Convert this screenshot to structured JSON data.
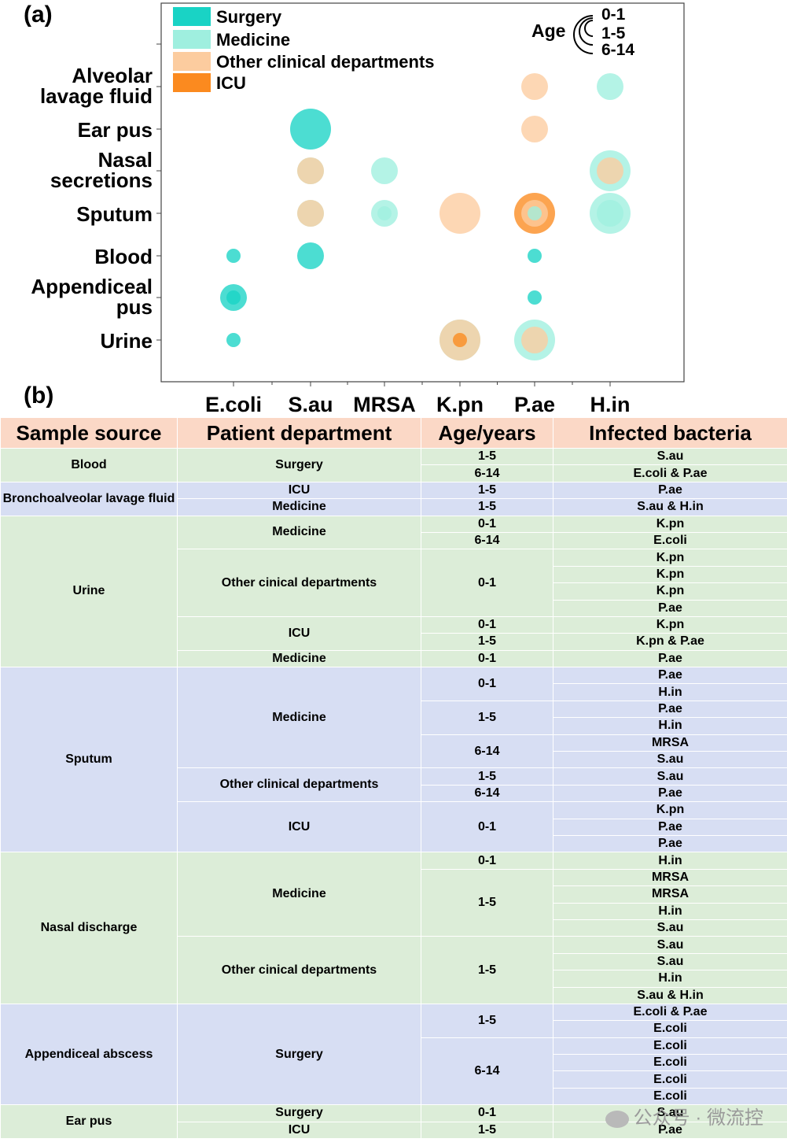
{
  "panel_a_label": "(a)",
  "panel_b_label": "(b)",
  "chart_data": {
    "type": "scatter",
    "categories": [
      "E.coli",
      "S.au",
      "MRSA",
      "K.pn",
      "P.ae",
      "H.in"
    ],
    "rows": [
      "Urine",
      "Appendiceal pus",
      "Blood",
      "Sputum",
      "Nasal secretions",
      "Ear pus",
      "Alveolar lavage fluid"
    ],
    "legend": {
      "departments": [
        {
          "name": "Surgery",
          "color": "#19d3c5"
        },
        {
          "name": "Medicine",
          "color": "#9fefdf"
        },
        {
          "name": "Other clinical departments",
          "color": "#fccc9f"
        },
        {
          "name": "ICU",
          "color": "#fb8a1f"
        }
      ],
      "age_title": "Age",
      "age_groups": [
        "0-1",
        "1-5",
        "6-14"
      ],
      "placement": "top"
    },
    "points": [
      {
        "x": "E.coli",
        "y": "Urine",
        "dept": "Surgery",
        "size": 1
      },
      {
        "x": "E.coli",
        "y": "Appendiceal pus",
        "dept": "Surgery",
        "size": 2
      },
      {
        "x": "E.coli",
        "y": "Appendiceal pus",
        "dept": "Surgery",
        "size": 1
      },
      {
        "x": "E.coli",
        "y": "Blood",
        "dept": "Surgery",
        "size": 1
      },
      {
        "x": "S.au",
        "y": "Blood",
        "dept": "Surgery",
        "size": 2
      },
      {
        "x": "S.au",
        "y": "Sputum",
        "dept": "Medicine",
        "size": 2
      },
      {
        "x": "S.au",
        "y": "Sputum",
        "dept": "Other clinical departments",
        "size": 2
      },
      {
        "x": "S.au",
        "y": "Nasal secretions",
        "dept": "Medicine",
        "size": 2
      },
      {
        "x": "S.au",
        "y": "Nasal secretions",
        "dept": "Other clinical departments",
        "size": 2
      },
      {
        "x": "S.au",
        "y": "Ear pus",
        "dept": "Surgery",
        "size": 3
      },
      {
        "x": "MRSA",
        "y": "Sputum",
        "dept": "Medicine",
        "size": 2
      },
      {
        "x": "MRSA",
        "y": "Sputum",
        "dept": "Medicine",
        "size": 1
      },
      {
        "x": "MRSA",
        "y": "Nasal secretions",
        "dept": "Medicine",
        "size": 2
      },
      {
        "x": "K.pn",
        "y": "Urine",
        "dept": "Medicine",
        "size": 3
      },
      {
        "x": "K.pn",
        "y": "Urine",
        "dept": "Other clinical departments",
        "size": 3
      },
      {
        "x": "K.pn",
        "y": "Urine",
        "dept": "ICU",
        "size": 1
      },
      {
        "x": "K.pn",
        "y": "Sputum",
        "dept": "Other clinical departments",
        "size": 3
      },
      {
        "x": "P.ae",
        "y": "Urine",
        "dept": "Medicine",
        "size": 3
      },
      {
        "x": "P.ae",
        "y": "Urine",
        "dept": "Other clinical departments",
        "size": 2
      },
      {
        "x": "P.ae",
        "y": "Appendiceal pus",
        "dept": "Surgery",
        "size": 1
      },
      {
        "x": "P.ae",
        "y": "Blood",
        "dept": "Surgery",
        "size": 1
      },
      {
        "x": "P.ae",
        "y": "Sputum",
        "dept": "ICU",
        "size": 3
      },
      {
        "x": "P.ae",
        "y": "Sputum",
        "dept": "Other clinical departments",
        "size": 2
      },
      {
        "x": "P.ae",
        "y": "Sputum",
        "dept": "Medicine",
        "size": 1
      },
      {
        "x": "P.ae",
        "y": "Ear pus",
        "dept": "Other clinical departments",
        "size": 2
      },
      {
        "x": "P.ae",
        "y": "Alveolar lavage fluid",
        "dept": "Other clinical departments",
        "size": 2
      },
      {
        "x": "H.in",
        "y": "Sputum",
        "dept": "Medicine",
        "size": 3
      },
      {
        "x": "H.in",
        "y": "Sputum",
        "dept": "Medicine",
        "size": 2
      },
      {
        "x": "H.in",
        "y": "Nasal secretions",
        "dept": "Medicine",
        "size": 3
      },
      {
        "x": "H.in",
        "y": "Nasal secretions",
        "dept": "Other clinical departments",
        "size": 2
      },
      {
        "x": "H.in",
        "y": "Alveolar lavage fluid",
        "dept": "Medicine",
        "size": 2
      }
    ]
  },
  "table": {
    "headers": [
      "Sample source",
      "Patient department",
      "Age/years",
      "Infected bacteria"
    ],
    "rows": [
      [
        "Blood",
        "Surgery",
        "1-5",
        "S.au"
      ],
      [
        "Blood",
        "Surgery",
        "6-14",
        "E.coli & P.ae"
      ],
      [
        "Bronchoalveolar lavage fluid",
        "ICU",
        "1-5",
        "P.ae"
      ],
      [
        "Bronchoalveolar lavage fluid",
        "Medicine",
        "1-5",
        "S.au & H.in"
      ],
      [
        "Urine",
        "Medicine",
        "0-1",
        "K.pn"
      ],
      [
        "Urine",
        "Medicine",
        "6-14",
        "E.coli"
      ],
      [
        "Urine",
        "Other cinical departments",
        "0-1",
        "K.pn"
      ],
      [
        "Urine",
        "Other cinical departments",
        "0-1",
        "K.pn"
      ],
      [
        "Urine",
        "Other cinical departments",
        "0-1",
        "K.pn"
      ],
      [
        "Urine",
        "Other cinical departments",
        "0-1",
        "P.ae"
      ],
      [
        "Urine",
        "ICU",
        "0-1",
        "K.pn"
      ],
      [
        "Urine",
        "ICU",
        "1-5",
        "K.pn & P.ae"
      ],
      [
        "Urine",
        "Medicine",
        "0-1",
        "P.ae"
      ],
      [
        "Sputum",
        "Medicine",
        "0-1",
        "P.ae"
      ],
      [
        "Sputum",
        "Medicine",
        "0-1",
        "H.in"
      ],
      [
        "Sputum",
        "Medicine",
        "1-5",
        "P.ae"
      ],
      [
        "Sputum",
        "Medicine",
        "1-5",
        "H.in"
      ],
      [
        "Sputum",
        "Medicine",
        "6-14",
        "MRSA"
      ],
      [
        "Sputum",
        "Medicine",
        "6-14",
        "S.au"
      ],
      [
        "Sputum",
        "Other clinical departments",
        "1-5",
        "S.au"
      ],
      [
        "Sputum",
        "Other clinical departments",
        "6-14",
        "P.ae"
      ],
      [
        "Sputum",
        "ICU",
        "0-1",
        "K.pn"
      ],
      [
        "Sputum",
        "ICU",
        "0-1",
        "P.ae"
      ],
      [
        "Sputum",
        "ICU",
        "0-1",
        "P.ae"
      ],
      [
        "Nasal discharge",
        "Medicine",
        "0-1",
        "H.in"
      ],
      [
        "Nasal discharge",
        "Medicine",
        "1-5",
        "MRSA"
      ],
      [
        "Nasal discharge",
        "Medicine",
        "1-5",
        "MRSA"
      ],
      [
        "Nasal discharge",
        "Medicine",
        "1-5",
        "H.in"
      ],
      [
        "Nasal discharge",
        "Medicine",
        "1-5",
        "S.au"
      ],
      [
        "Nasal discharge",
        "Other cinical departments",
        "1-5",
        "S.au"
      ],
      [
        "Nasal discharge",
        "Other cinical departments",
        "1-5",
        "S.au"
      ],
      [
        "Nasal discharge",
        "Other cinical departments",
        "1-5",
        "H.in"
      ],
      [
        "Nasal discharge",
        "Other cinical departments",
        "1-5",
        "S.au & H.in"
      ],
      [
        "Appendiceal abscess",
        "Surgery",
        "1-5",
        "E.coli & P.ae"
      ],
      [
        "Appendiceal abscess",
        "Surgery",
        "1-5",
        "E.coli"
      ],
      [
        "Appendiceal abscess",
        "Surgery",
        "6-14",
        "E.coli"
      ],
      [
        "Appendiceal abscess",
        "Surgery",
        "6-14",
        "E.coli"
      ],
      [
        "Appendiceal abscess",
        "Surgery",
        "6-14",
        "E.coli"
      ],
      [
        "Appendiceal abscess",
        "Surgery",
        "6-14",
        "E.coli"
      ],
      [
        "Ear pus",
        "Surgery",
        "0-1",
        "S.au"
      ],
      [
        "Ear pus",
        "ICU",
        "1-5",
        "P.ae"
      ]
    ],
    "group_colors": {
      "Blood": "green",
      "Bronchoalveolar lavage fluid": "blue",
      "Urine": "green",
      "Sputum": "blue",
      "Nasal discharge": "green",
      "Appendiceal abscess": "blue",
      "Ear pus": "green"
    }
  },
  "watermark": "公众号 · 微流控"
}
